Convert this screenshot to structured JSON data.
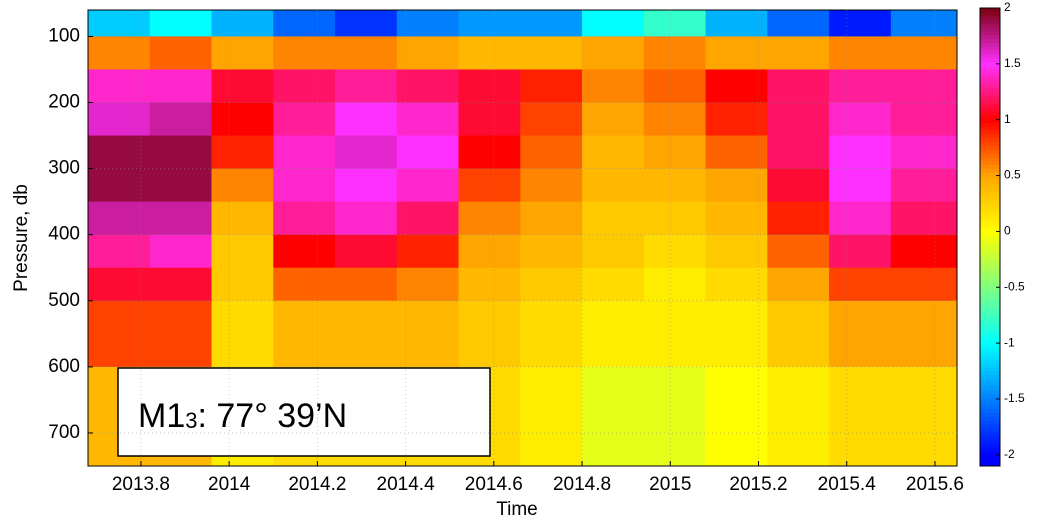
{
  "chart_data": {
    "type": "heatmap",
    "xlabel": "Time",
    "ylabel": "Pressure, db",
    "xlim": [
      2013.68,
      2015.65
    ],
    "ylim": [
      750,
      60
    ],
    "y_inverted": true,
    "xticks": [
      2013.8,
      2014,
      2014.2,
      2014.4,
      2014.6,
      2014.8,
      2015,
      2015.2,
      2015.4,
      2015.6
    ],
    "yticks": [
      100,
      200,
      300,
      400,
      500,
      600,
      700
    ],
    "grid": true,
    "x_bins": [
      2013.68,
      2013.82,
      2013.96,
      2014.1,
      2014.24,
      2014.38,
      2014.52,
      2014.66,
      2014.8,
      2014.94,
      2015.08,
      2015.22,
      2015.36,
      2015.5,
      2015.65
    ],
    "y_bins": [
      60,
      100,
      150,
      200,
      250,
      300,
      350,
      400,
      450,
      500,
      600,
      750
    ],
    "z": [
      [
        -1.2,
        -1.0,
        -1.3,
        -1.6,
        -1.8,
        -1.5,
        -1.4,
        -1.4,
        -1.0,
        -0.8,
        -1.3,
        -1.6,
        -1.9,
        -1.5
      ],
      [
        0.6,
        0.7,
        0.5,
        0.6,
        0.6,
        0.5,
        0.4,
        0.4,
        0.5,
        0.6,
        0.5,
        0.5,
        0.6,
        0.6
      ],
      [
        1.4,
        1.4,
        1.1,
        1.2,
        1.3,
        1.2,
        1.1,
        0.9,
        0.6,
        0.7,
        1.0,
        1.2,
        1.3,
        1.3
      ],
      [
        1.6,
        1.7,
        1.0,
        1.3,
        1.5,
        1.4,
        1.1,
        0.8,
        0.5,
        0.6,
        0.9,
        1.2,
        1.4,
        1.3
      ],
      [
        1.9,
        1.9,
        0.9,
        1.4,
        1.6,
        1.5,
        1.0,
        0.7,
        0.4,
        0.5,
        0.7,
        1.2,
        1.5,
        1.4
      ],
      [
        1.9,
        1.9,
        0.6,
        1.4,
        1.5,
        1.4,
        0.8,
        0.6,
        0.4,
        0.4,
        0.5,
        1.1,
        1.5,
        1.3
      ],
      [
        1.7,
        1.7,
        0.4,
        1.3,
        1.4,
        1.2,
        0.6,
        0.5,
        0.3,
        0.3,
        0.4,
        0.9,
        1.4,
        1.2
      ],
      [
        1.3,
        1.4,
        0.3,
        1.0,
        1.1,
        0.9,
        0.5,
        0.4,
        0.3,
        0.2,
        0.3,
        0.7,
        1.2,
        1.0
      ],
      [
        1.1,
        1.1,
        0.3,
        0.7,
        0.7,
        0.6,
        0.4,
        0.3,
        0.2,
        0.1,
        0.2,
        0.5,
        0.8,
        0.8
      ],
      [
        0.8,
        0.8,
        0.2,
        0.4,
        0.4,
        0.4,
        0.3,
        0.2,
        0.1,
        0.1,
        0.1,
        0.3,
        0.5,
        0.5
      ],
      [
        0.4,
        0.4,
        0.1,
        0.2,
        0.2,
        0.2,
        0.2,
        0.1,
        -0.1,
        -0.1,
        0.0,
        0.1,
        0.2,
        0.2
      ]
    ],
    "clim": [
      -2.1,
      2
    ],
    "colormap": [
      "#0000ff",
      "#0080ff",
      "#00ffff",
      "#80ff80",
      "#ffff00",
      "#ffa500",
      "#ff0000",
      "#ff30ff",
      "#7a0010"
    ],
    "cticks": [
      2,
      1.5,
      1,
      0.5,
      0,
      -0.5,
      -1,
      -1.5,
      -2
    ],
    "annotation": {
      "parts": [
        "M1",
        "3",
        ":  77° 39’N"
      ]
    }
  }
}
